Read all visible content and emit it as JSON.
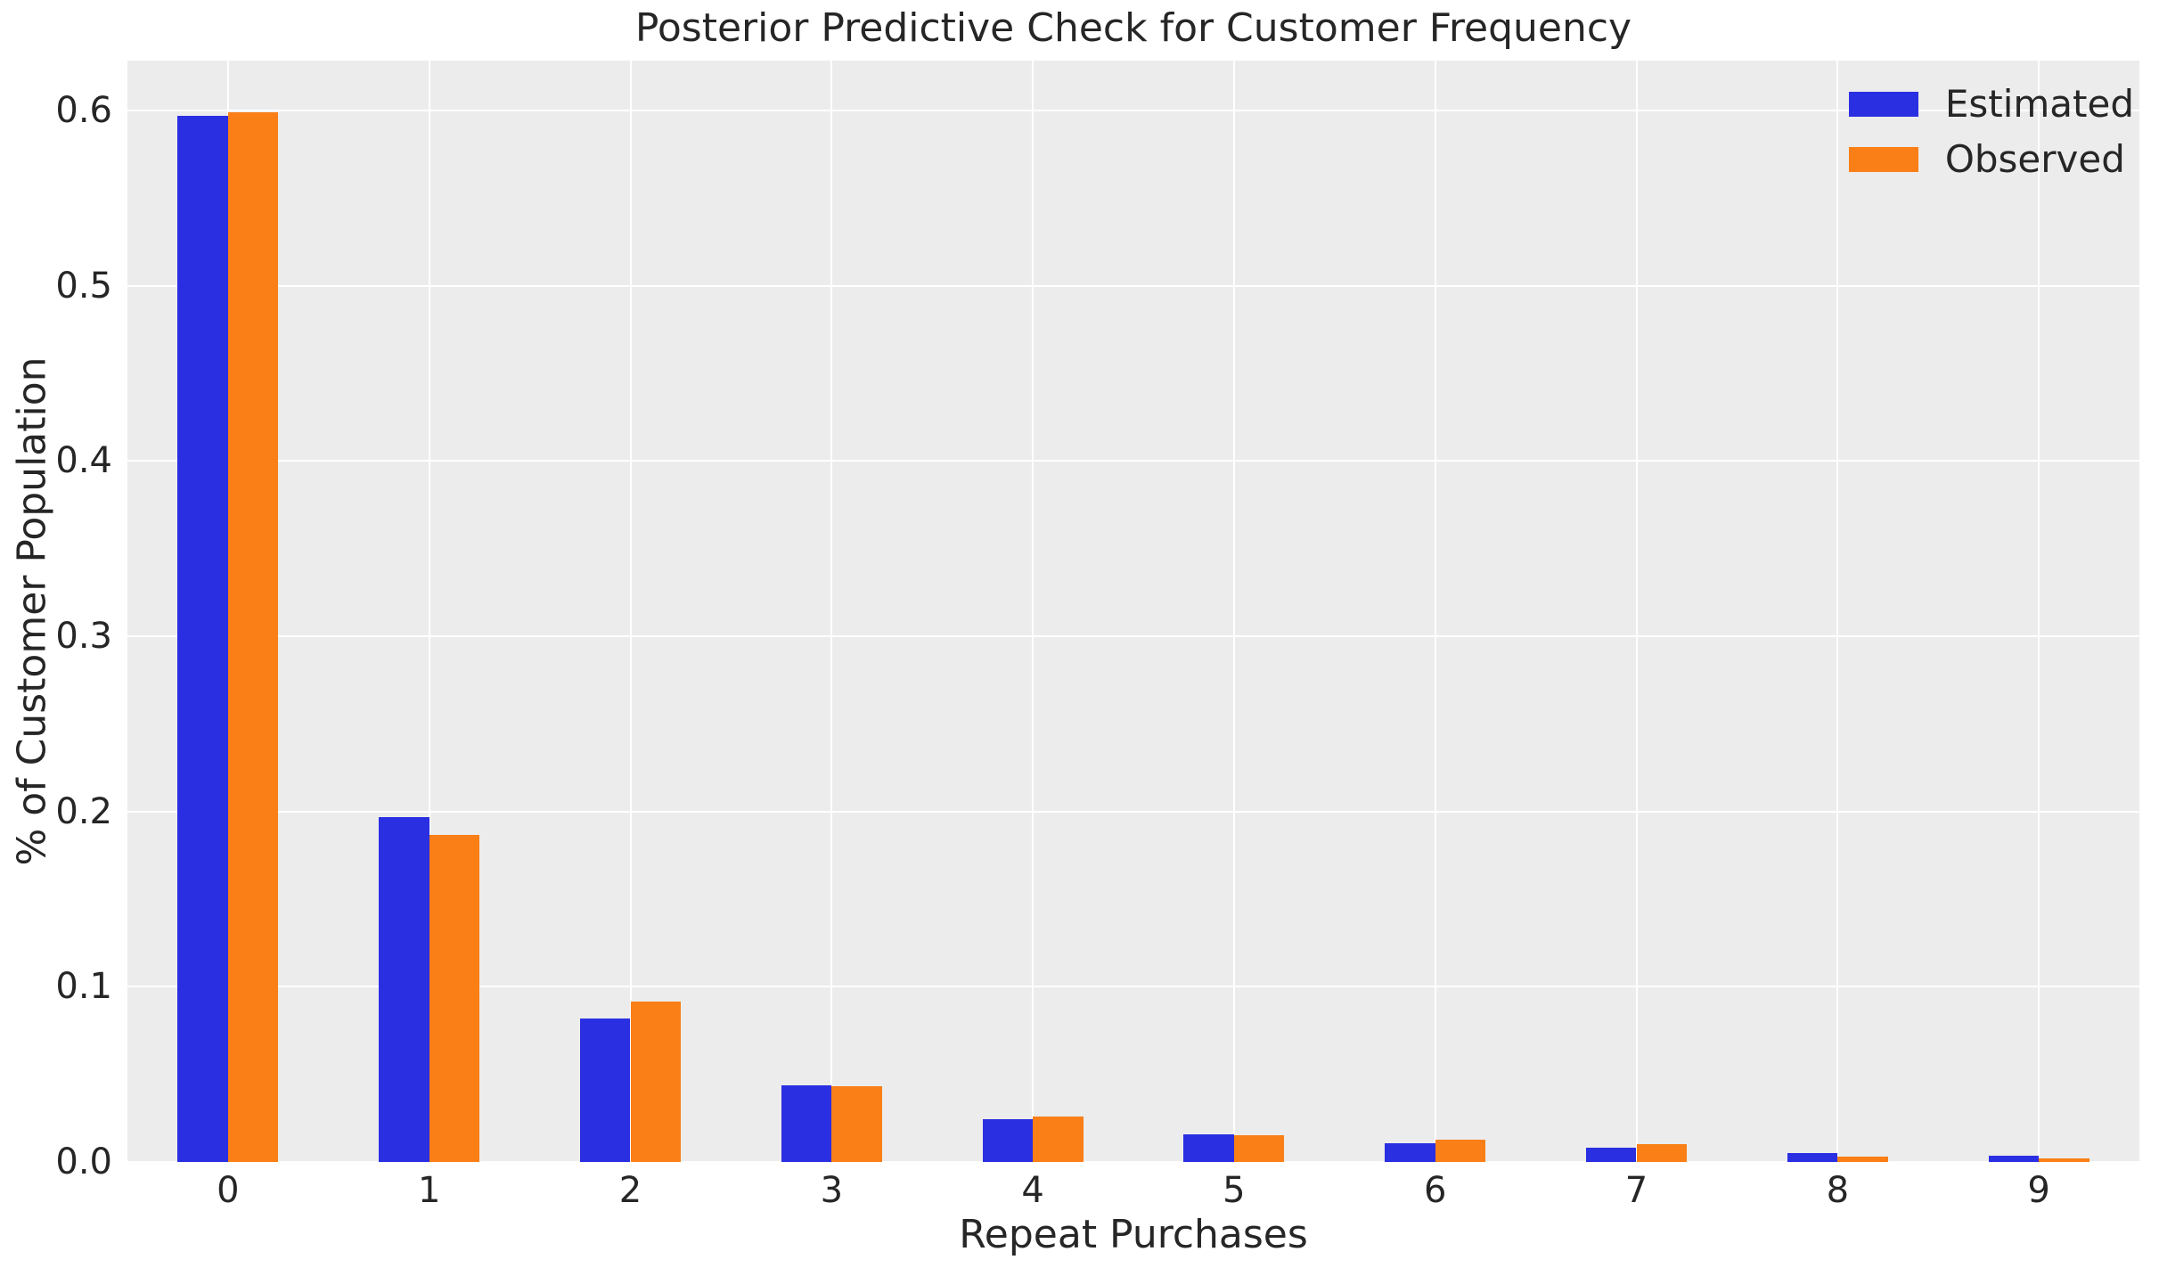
{
  "chart_data": {
    "type": "bar",
    "title": "Posterior Predictive Check for Customer Frequency",
    "xlabel": "Repeat Purchases",
    "ylabel": "% of Customer Population",
    "categories": [
      "0",
      "1",
      "2",
      "3",
      "4",
      "5",
      "6",
      "7",
      "8",
      "9"
    ],
    "series": [
      {
        "name": "Estimated",
        "color": "#2b2fe2",
        "values": [
          0.597,
          0.197,
          0.082,
          0.0435,
          0.0245,
          0.016,
          0.0105,
          0.008,
          0.005,
          0.0035
        ]
      },
      {
        "name": "Observed",
        "color": "#f97f16",
        "values": [
          0.599,
          0.1865,
          0.0915,
          0.043,
          0.026,
          0.0155,
          0.0125,
          0.01,
          0.003,
          0.002
        ]
      }
    ],
    "ytick_values": [
      0.0,
      0.1,
      0.2,
      0.3,
      0.4,
      0.5,
      0.6
    ],
    "ytick_labels": [
      "0.0",
      "0.1",
      "0.2",
      "0.3",
      "0.4",
      "0.5",
      "0.6"
    ],
    "ylim": [
      0,
      0.6285
    ],
    "grid": true,
    "legend_position": "upper right",
    "colors": {
      "plot_background": "#ececec",
      "gridline": "#ffffff",
      "figure_background": "#ffffff",
      "text": "#262626"
    }
  }
}
